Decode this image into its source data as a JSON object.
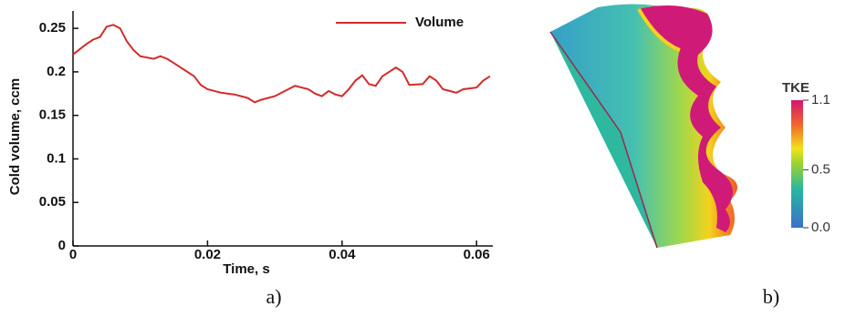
{
  "chart_data": {
    "type": "line",
    "xlabel": "Time, s",
    "ylabel": "Cold volume, ccm",
    "x": [
      0,
      0.002,
      0.003,
      0.004,
      0.005,
      0.006,
      0.007,
      0.008,
      0.009,
      0.01,
      0.012,
      0.013,
      0.014,
      0.015,
      0.016,
      0.017,
      0.018,
      0.019,
      0.02,
      0.022,
      0.024,
      0.026,
      0.027,
      0.028,
      0.03,
      0.032,
      0.033,
      0.035,
      0.036,
      0.037,
      0.038,
      0.039,
      0.04,
      0.041,
      0.042,
      0.043,
      0.044,
      0.045,
      0.046,
      0.047,
      0.048,
      0.049,
      0.05,
      0.052,
      0.053,
      0.054,
      0.055,
      0.056,
      0.057,
      0.058,
      0.06,
      0.061,
      0.062
    ],
    "series": [
      {
        "name": "Volume",
        "color": "#d42a2a",
        "values": [
          0.22,
          0.232,
          0.237,
          0.24,
          0.252,
          0.254,
          0.25,
          0.235,
          0.225,
          0.218,
          0.215,
          0.218,
          0.215,
          0.21,
          0.205,
          0.2,
          0.195,
          0.185,
          0.18,
          0.176,
          0.174,
          0.17,
          0.165,
          0.168,
          0.172,
          0.18,
          0.184,
          0.18,
          0.175,
          0.172,
          0.178,
          0.174,
          0.172,
          0.18,
          0.19,
          0.196,
          0.186,
          0.184,
          0.195,
          0.2,
          0.205,
          0.2,
          0.185,
          0.186,
          0.195,
          0.19,
          0.18,
          0.178,
          0.176,
          0.18,
          0.182,
          0.19,
          0.195
        ]
      }
    ],
    "xlim": [
      0,
      0.062
    ],
    "xticks": [
      0,
      0.02,
      0.04,
      0.06
    ],
    "ylim": [
      0,
      0.27
    ],
    "yticks": [
      0,
      0.05,
      0.1,
      0.15,
      0.2,
      0.25
    ],
    "legend": "upper right"
  },
  "panel_labels": [
    "a)",
    "b)"
  ],
  "colorbar": {
    "title": "TKE",
    "lim": [
      0,
      1.1
    ],
    "ticks": [
      {
        "value": 0,
        "label": "0.0"
      },
      0.5,
      1.1
    ]
  }
}
